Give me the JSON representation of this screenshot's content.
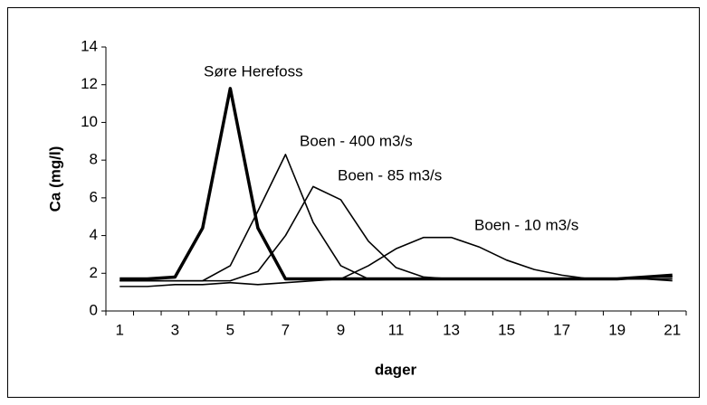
{
  "chart_data": {
    "type": "line",
    "y_label": "Ca (mg/l)",
    "x_label": "dager",
    "categories": [
      1,
      null,
      3,
      null,
      5,
      null,
      7,
      null,
      9,
      null,
      11,
      null,
      13,
      null,
      15,
      null,
      17,
      null,
      19,
      null,
      21
    ],
    "ylim": [
      0,
      14
    ],
    "yticks": [
      0,
      2,
      4,
      6,
      8,
      10,
      12,
      14
    ],
    "series": [
      {
        "name": "Søre Herefoss",
        "color": "#000000",
        "line_width": 3.5,
        "values": [
          1.7,
          1.7,
          1.8,
          4.4,
          11.8,
          4.4,
          1.7,
          1.7,
          1.7,
          1.7,
          1.7,
          1.7,
          1.7,
          1.7,
          1.7,
          1.7,
          1.7,
          1.7,
          1.7,
          1.8,
          1.9
        ]
      },
      {
        "name": "Boen - 400 m3/s",
        "color": "#000000",
        "line_width": 1.6,
        "values": [
          1.6,
          1.6,
          1.6,
          1.6,
          2.4,
          5.3,
          8.3,
          4.7,
          2.4,
          1.7,
          1.7,
          1.7,
          1.7,
          1.7,
          1.7,
          1.7,
          1.7,
          1.7,
          1.7,
          1.7,
          1.6
        ]
      },
      {
        "name": "Boen - 85 m3/s",
        "color": "#000000",
        "line_width": 1.6,
        "values": [
          1.6,
          1.6,
          1.6,
          1.6,
          1.6,
          2.1,
          4.0,
          6.6,
          5.9,
          3.7,
          2.3,
          1.8,
          1.7,
          1.7,
          1.7,
          1.7,
          1.7,
          1.7,
          1.7,
          1.7,
          1.7
        ]
      },
      {
        "name": "Boen - 10 m3/s",
        "color": "#000000",
        "line_width": 1.6,
        "values": [
          1.3,
          1.3,
          1.4,
          1.4,
          1.5,
          1.4,
          1.5,
          1.6,
          1.7,
          2.4,
          3.3,
          3.9,
          3.9,
          3.4,
          2.7,
          2.2,
          1.9,
          1.7,
          1.7,
          1.8,
          1.8
        ]
      }
    ]
  }
}
